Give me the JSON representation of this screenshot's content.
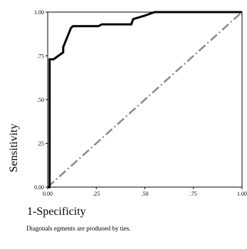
{
  "chart_data": {
    "type": "line",
    "xlabel": "1-Specificity",
    "ylabel": "Sensitivity",
    "xlim": [
      0,
      1
    ],
    "ylim": [
      0,
      1
    ],
    "x_ticks": [
      "0.00",
      ".25",
      ".50",
      ".75",
      "1.00"
    ],
    "y_ticks": [
      "0.00",
      ".25",
      ".50",
      ".75",
      "1.00"
    ],
    "grid": false,
    "series": [
      {
        "style": "solid-black",
        "points": [
          [
            0.0,
            0.0
          ],
          [
            0.01,
            0.0
          ],
          [
            0.01,
            0.73
          ],
          [
            0.03,
            0.73
          ],
          [
            0.08,
            0.77
          ],
          [
            0.08,
            0.8
          ],
          [
            0.12,
            0.91
          ],
          [
            0.13,
            0.92
          ],
          [
            0.26,
            0.92
          ],
          [
            0.28,
            0.93
          ],
          [
            0.43,
            0.93
          ],
          [
            0.44,
            0.96
          ],
          [
            0.5,
            0.98
          ],
          [
            0.55,
            1.0
          ],
          [
            1.0,
            1.0
          ]
        ]
      },
      {
        "style": "dash-dot-gray",
        "points": [
          [
            0.0,
            0.0
          ],
          [
            1.0,
            1.0
          ]
        ]
      }
    ],
    "footnote": "Diagonals egments are produoed by ties."
  },
  "colors": {
    "roc": "#000000",
    "diagonal": "#8a8a8a",
    "frame": "#000000"
  }
}
